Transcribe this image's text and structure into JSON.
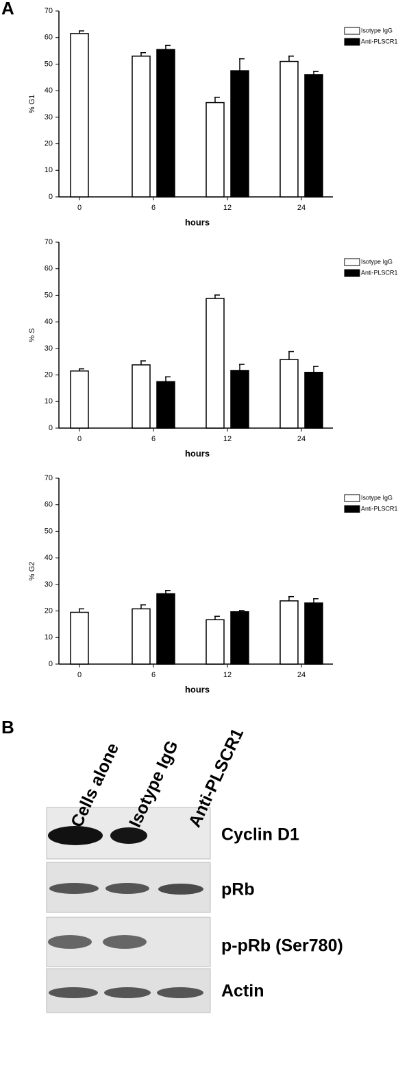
{
  "panels": {
    "a": "A",
    "b": "B"
  },
  "chart_data": [
    {
      "type": "bar",
      "ylabel": "% G1",
      "xlabel": "hours",
      "categories": [
        "0",
        "6",
        "12",
        "24"
      ],
      "series": [
        {
          "name": "Isotype IgG",
          "color": "#ffffff",
          "values": [
            61.5,
            53,
            35.5,
            51
          ],
          "errors": [
            1,
            1.3,
            2,
            2
          ]
        },
        {
          "name": "Anti-PLSCR1",
          "color": "#000000",
          "values": [
            null,
            55.5,
            47.5,
            46
          ],
          "errors": [
            null,
            1.5,
            4.5,
            1.2
          ]
        }
      ],
      "ylim": [
        0,
        70
      ],
      "yticks": [
        0,
        10,
        20,
        30,
        40,
        50,
        60,
        70
      ],
      "legend": "upper right"
    },
    {
      "type": "bar",
      "ylabel": "% S",
      "xlabel": "hours",
      "categories": [
        "0",
        "6",
        "12",
        "24"
      ],
      "series": [
        {
          "name": "Isotype IgG",
          "color": "#ffffff",
          "values": [
            21.5,
            23.8,
            48.8,
            25.8
          ],
          "errors": [
            0.8,
            1.5,
            1.3,
            3
          ]
        },
        {
          "name": "Anti-PLSCR1",
          "color": "#000000",
          "values": [
            null,
            17.5,
            21.7,
            21
          ],
          "errors": [
            null,
            1.8,
            2.3,
            2.2
          ]
        }
      ],
      "ylim": [
        0,
        70
      ],
      "yticks": [
        0,
        10,
        20,
        30,
        40,
        50,
        60,
        70
      ],
      "legend": "upper right"
    },
    {
      "type": "bar",
      "ylabel": "% G2",
      "xlabel": "hours",
      "categories": [
        "0",
        "6",
        "12",
        "24"
      ],
      "series": [
        {
          "name": "Isotype IgG",
          "color": "#ffffff",
          "values": [
            19.5,
            20.8,
            16.7,
            23.8
          ],
          "errors": [
            1.3,
            1.5,
            1.3,
            1.6
          ]
        },
        {
          "name": "Anti-PLSCR1",
          "color": "#000000",
          "values": [
            null,
            26.5,
            19.7,
            23
          ],
          "errors": [
            null,
            1.2,
            0.5,
            1.6
          ]
        }
      ],
      "ylim": [
        0,
        70
      ],
      "yticks": [
        0,
        10,
        20,
        30,
        40,
        50,
        60,
        70
      ],
      "legend": "upper right"
    }
  ],
  "blot": {
    "lanes": [
      "Cells alone",
      "Isotype IgG",
      "Anti-PLSCR1"
    ],
    "rows": [
      "Cyclin D1",
      "pRb",
      "p-pRb (Ser780)",
      "Actin"
    ]
  }
}
